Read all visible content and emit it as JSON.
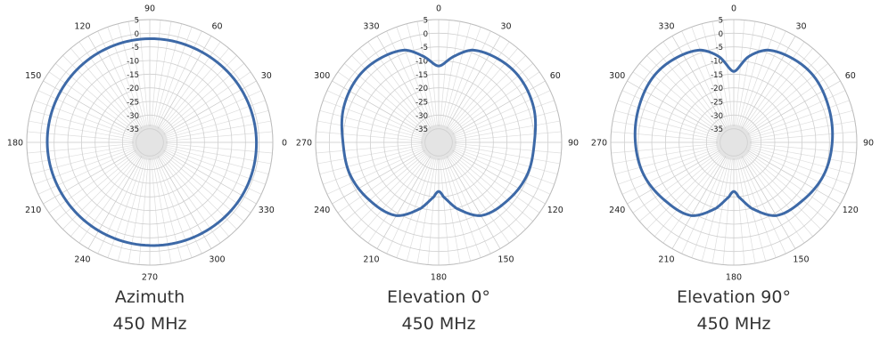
{
  "chart_data": [
    {
      "type": "polar",
      "title": "Azimuth",
      "subtitle": "450 MHz",
      "angle_labels": [
        "0",
        "30",
        "60",
        "90",
        "120",
        "150",
        "180",
        "210",
        "240",
        "270",
        "300",
        "330"
      ],
      "angle_zero_position": "right",
      "angle_direction": "counter-clockwise",
      "angle_label_step": 30,
      "radial_ticks": [
        "5",
        "0",
        "-5",
        "-10",
        "-15",
        "-20",
        "-25",
        "-30",
        "-35"
      ],
      "rlim": [
        -40,
        5
      ],
      "series": [
        {
          "color": "#3D69A7",
          "angles": [
            0,
            30,
            60,
            90,
            120,
            150,
            180,
            210,
            240,
            270,
            300,
            330
          ],
          "values": [
            -1.0,
            -1.3,
            -1.8,
            -2.0,
            -2.2,
            -2.4,
            -2.5,
            -2.7,
            -2.6,
            -2.2,
            -1.6,
            -1.0
          ]
        }
      ]
    },
    {
      "type": "polar",
      "title": "Elevation 0°",
      "subtitle": "450 MHz",
      "angle_labels": [
        "0",
        "30",
        "60",
        "90",
        "120",
        "150",
        "180",
        "210",
        "240",
        "270",
        "300",
        "330"
      ],
      "angle_zero_position": "top",
      "angle_direction": "clockwise",
      "angle_label_step": 30,
      "radial_ticks": [
        "5",
        "0",
        "-5",
        "-10",
        "-15",
        "-20",
        "-25",
        "-30",
        "-35"
      ],
      "rlim": [
        -40,
        5
      ],
      "series": [
        {
          "color": "#3D69A7",
          "angles": [
            0,
            10,
            20,
            35,
            50,
            70,
            90,
            110,
            130,
            150,
            165,
            175,
            180,
            185,
            195,
            210,
            230,
            250,
            270,
            290,
            310,
            325,
            340,
            350
          ],
          "values": [
            -12.0,
            -8.0,
            -4.0,
            -2.5,
            -2.0,
            -3.0,
            -5.0,
            -5.5,
            -7.0,
            -9.0,
            -15.0,
            -20.0,
            -22.0,
            -20.0,
            -15.0,
            -9.0,
            -7.0,
            -5.5,
            -5.0,
            -3.0,
            -2.0,
            -2.5,
            -4.0,
            -8.0
          ]
        }
      ]
    },
    {
      "type": "polar",
      "title": "Elevation 90°",
      "subtitle": "450 MHz",
      "angle_labels": [
        "0",
        "30",
        "60",
        "90",
        "120",
        "150",
        "180",
        "210",
        "240",
        "270",
        "300",
        "330"
      ],
      "angle_zero_position": "top",
      "angle_direction": "clockwise",
      "angle_label_step": 30,
      "radial_ticks": [
        "5",
        "0",
        "-5",
        "-10",
        "-15",
        "-20",
        "-25",
        "-30",
        "-35"
      ],
      "rlim": [
        -40,
        5
      ],
      "series": [
        {
          "color": "#3D69A7",
          "angles": [
            0,
            10,
            20,
            35,
            50,
            70,
            90,
            110,
            130,
            150,
            165,
            175,
            180,
            185,
            195,
            210,
            230,
            250,
            270,
            290,
            310,
            325,
            340,
            350
          ],
          "values": [
            -14.0,
            -8.0,
            -4.0,
            -2.5,
            -2.0,
            -3.0,
            -4.0,
            -5.0,
            -7.0,
            -9.0,
            -15.0,
            -20.0,
            -22.0,
            -20.0,
            -15.0,
            -9.0,
            -7.0,
            -5.0,
            -4.0,
            -3.0,
            -2.0,
            -2.5,
            -4.0,
            -8.0
          ]
        }
      ]
    }
  ]
}
